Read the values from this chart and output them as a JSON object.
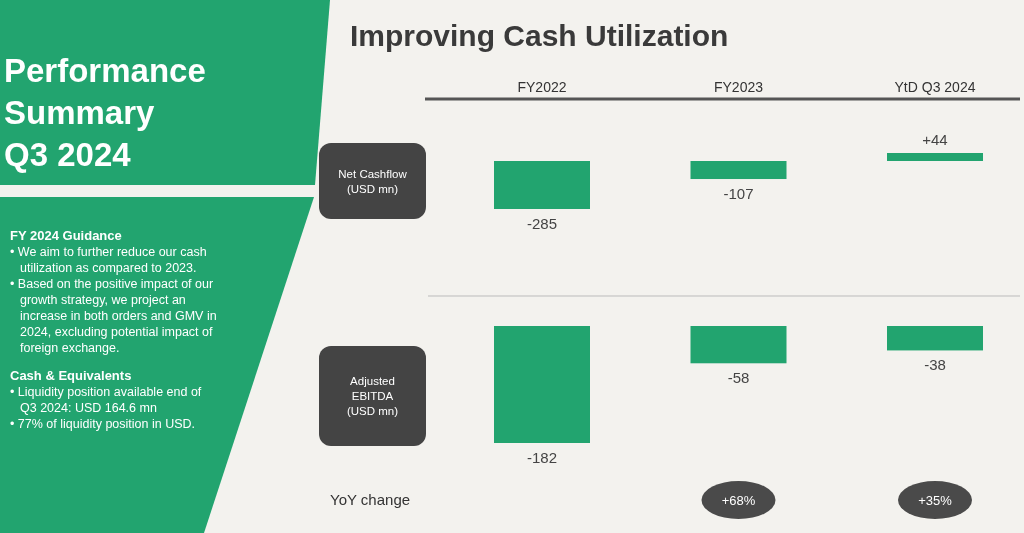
{
  "chart_data": [
    {
      "type": "other",
      "title": "Performance Summary\nQ3 2024",
      "color": "#22a46f",
      "annotations": [
        "FY 2024 Guidance",
        "• We aim to further reduce our cash utilization as compared to 2023.",
        "• Based on the positive impact of our growth strategy, we project an increase in both orders and GMV in 2024, excluding potential impact of foreign exchange.",
        "Cash & Equivalents",
        "• Liquidity position available end of Q3 2024: USD 164.6 mn",
        "• 77% of liquidity position in USD."
      ]
    },
    {
      "type": "bar",
      "title": "Improving Cash Utilization",
      "ylabel": "Net Cashflow (USD mn)",
      "categories": [
        "FY2022",
        "FY2023",
        "YtD Q3 2024"
      ],
      "values": [
        -285,
        -107,
        44
      ],
      "value_labels": [
        "-285",
        "-107",
        "+44"
      ],
      "color": "#22a46f"
    },
    {
      "type": "bar",
      "ylabel": "Adjusted EBITDA (USD mn)",
      "categories": [
        null,
        null,
        null
      ],
      "values": [
        -182,
        -58,
        -38
      ],
      "color": "#22a46f",
      "data_labels": true,
      "tick_labels": false,
      "annotations": [
        "YoY change",
        "+68%",
        "+35%"
      ]
    }
  ]
}
